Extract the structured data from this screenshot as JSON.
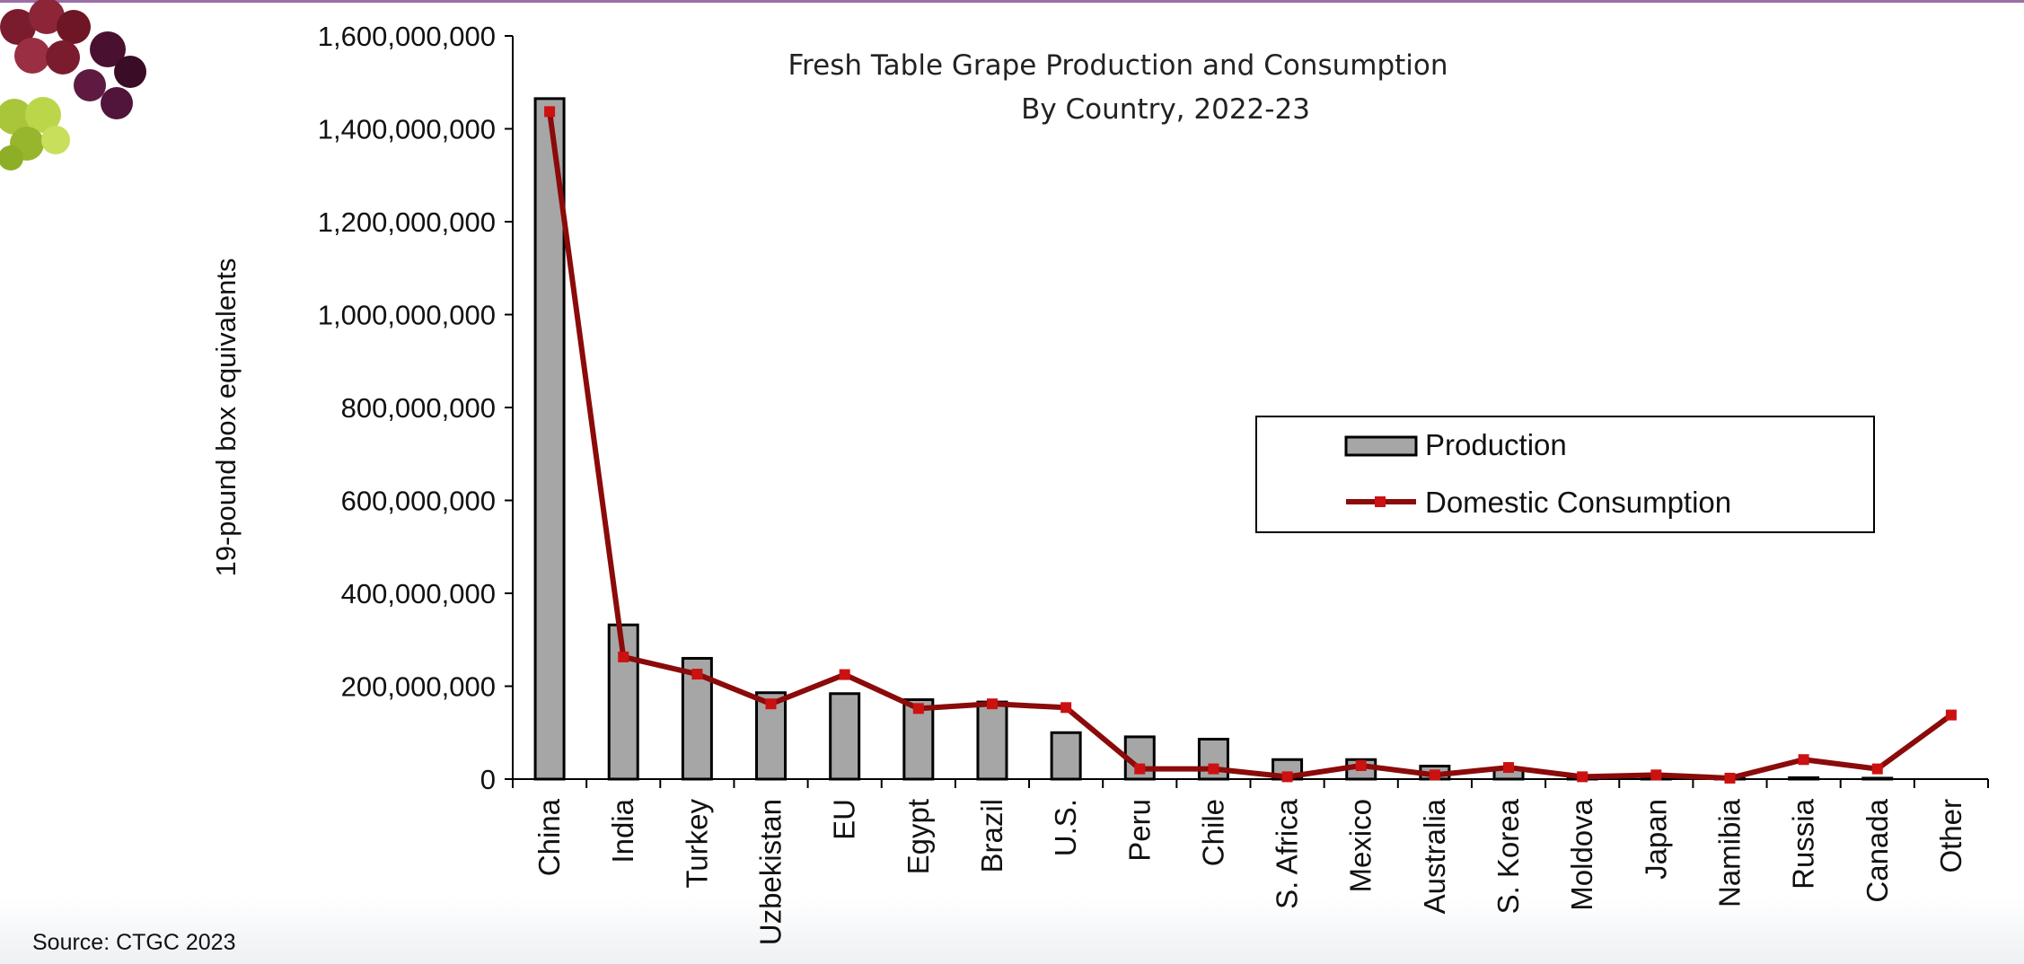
{
  "source_note": "Source: CTGC 2023",
  "decoration": "grapes-image",
  "colors": {
    "production_fill": "#a6a6a6",
    "consumption_line": "#8b0a0a",
    "consumption_marker": "#cc1111",
    "accent_rule": "#9b6ea6"
  },
  "chart_data": {
    "type": "bar",
    "title": "Fresh Table Grape Production and Consumption",
    "subtitle": "By Country, 2022-23",
    "ylabel": "19-pound box equivalents",
    "xlabel": "",
    "ylim": [
      0,
      1600000000
    ],
    "yticks": [
      0,
      200000000,
      400000000,
      600000000,
      800000000,
      1000000000,
      1200000000,
      1400000000,
      1600000000
    ],
    "ytick_labels": [
      "0",
      "200,000,000",
      "400,000,000",
      "600,000,000",
      "800,000,000",
      "1,000,000,000",
      "1,200,000,000",
      "1,400,000,000",
      "1,600,000,000"
    ],
    "grid": false,
    "legend_position": "center-right",
    "categories": [
      "China",
      "India",
      "Turkey",
      "Uzbekistan",
      "EU",
      "Egypt",
      "Brazil",
      "U.S.",
      "Peru",
      "Chile",
      "S. Africa",
      "Mexico",
      "Australia",
      "S. Korea",
      "Moldova",
      "Japan",
      "Namibia",
      "Russia",
      "Canada",
      "Other"
    ],
    "series": [
      {
        "name": "Production",
        "type": "bar",
        "values": [
          1465000000,
          332000000,
          260000000,
          186000000,
          184000000,
          171000000,
          166000000,
          100000000,
          91000000,
          86000000,
          42000000,
          42000000,
          28000000,
          22000000,
          5000000,
          6000000,
          1000000,
          3000000,
          2000000,
          0
        ]
      },
      {
        "name": "Domestic Consumption",
        "type": "line",
        "values": [
          1437000000,
          263000000,
          226000000,
          162000000,
          225000000,
          152000000,
          162000000,
          154000000,
          22000000,
          22000000,
          5000000,
          29000000,
          9000000,
          25000000,
          5000000,
          9000000,
          2000000,
          42000000,
          22000000,
          138000000
        ]
      }
    ]
  }
}
